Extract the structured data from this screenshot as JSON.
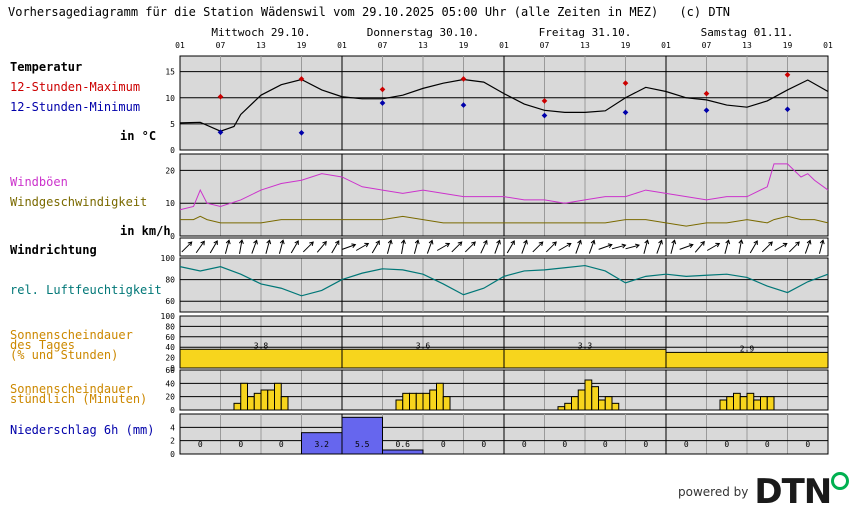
{
  "header": {
    "title": "Vorhersagediagramm für die Station Wädenswil vom 29.10.2025 05:00 Uhr (alle Zeiten in MEZ)",
    "copyright": "(c) DTN"
  },
  "days": [
    {
      "label": "Mittwoch 29.10."
    },
    {
      "label": "Donnerstag 30.10."
    },
    {
      "label": "Freitag 31.10."
    },
    {
      "label": "Samstag 01.11."
    }
  ],
  "hour_ticks": [
    "01",
    "07",
    "13",
    "19"
  ],
  "end_tick": "01",
  "panels": {
    "temperature": {
      "title": "Temperatur",
      "max_label": "12-Stunden-Maximum",
      "min_label": "12-Stunden-Minimum",
      "unit": "in °C",
      "ticks": [
        "0",
        "5",
        "10",
        "15"
      ],
      "colors": {
        "title": "#000000",
        "max": "#cc0000",
        "min": "#0000aa",
        "line": "#000000"
      }
    },
    "wind": {
      "gust_label": "Windböen",
      "speed_label": "Windgeschwindigkeit",
      "unit": "in km/h",
      "ticks": [
        "0",
        "10",
        "20"
      ],
      "colors": {
        "gust": "#cc33cc",
        "speed": "#7a6a00"
      }
    },
    "wind_direction": {
      "title": "Windrichtung"
    },
    "humidity": {
      "title": "rel. Luftfeuchtigkeit",
      "ticks": [
        "60",
        "80",
        "100"
      ],
      "color": "#007777"
    },
    "sun_daily": {
      "title": "Sonnenscheindauer\ndes Tages\n(% und Stunden)",
      "ticks": [
        "0",
        "20",
        "40",
        "60",
        "80",
        "100"
      ],
      "color": "#f7d51d",
      "title_color": "#cc8800"
    },
    "sun_hourly": {
      "title": "Sonnenscheindauer\nstündlich (Minuten)",
      "ticks": [
        "0",
        "20",
        "40",
        "60"
      ],
      "color": "#f7d51d",
      "title_color": "#cc8800"
    },
    "precip": {
      "title": "Niederschlag 6h (mm)",
      "ticks": [
        "0",
        "2",
        "4"
      ],
      "color": "#6666ee",
      "title_color": "#0000aa"
    }
  },
  "chart_data": [
    {
      "type": "line",
      "name": "temperature",
      "ylim": [
        0,
        18
      ],
      "x_hours": [
        0,
        3,
        6,
        8,
        9,
        12,
        15,
        18,
        21,
        24,
        27,
        30,
        33,
        36,
        39,
        42,
        45,
        48,
        51,
        54,
        57,
        60,
        63,
        66,
        69,
        72,
        75,
        78,
        81,
        84,
        87,
        90,
        93,
        96
      ],
      "values": [
        5.2,
        5.3,
        3.6,
        4.5,
        6.8,
        10.5,
        12.5,
        13.5,
        11.5,
        10.2,
        9.8,
        9.8,
        10.5,
        11.8,
        12.8,
        13.5,
        13.0,
        10.8,
        8.8,
        7.6,
        7.2,
        7.2,
        7.5,
        10.0,
        12.0,
        11.2,
        10.0,
        9.6,
        8.6,
        8.2,
        9.4,
        11.5,
        13.4,
        11.2
      ],
      "max_points": [
        [
          6,
          10.2
        ],
        [
          18,
          13.6
        ],
        [
          30,
          11.6
        ],
        [
          42,
          13.6
        ],
        [
          54,
          9.4
        ],
        [
          66,
          12.8
        ],
        [
          78,
          10.8
        ],
        [
          90,
          14.4
        ]
      ],
      "min_points": [
        [
          6,
          3.4
        ],
        [
          18,
          3.3
        ],
        [
          30,
          9.0
        ],
        [
          42,
          8.6
        ],
        [
          54,
          6.6
        ],
        [
          66,
          7.2
        ],
        [
          78,
          7.6
        ],
        [
          90,
          7.8
        ]
      ]
    },
    {
      "type": "line",
      "name": "wind",
      "ylim": [
        0,
        25
      ],
      "x_hours": [
        0,
        2,
        3,
        4,
        6,
        9,
        12,
        15,
        18,
        21,
        24,
        27,
        30,
        33,
        36,
        39,
        42,
        45,
        48,
        51,
        54,
        57,
        60,
        63,
        66,
        69,
        72,
        75,
        78,
        81,
        84,
        87,
        88,
        90,
        92,
        93,
        94,
        96
      ],
      "gusts": [
        8,
        9,
        14,
        10,
        9,
        11,
        14,
        16,
        17,
        19,
        18,
        15,
        14,
        13,
        14,
        13,
        12,
        12,
        12,
        11,
        11,
        10,
        11,
        12,
        12,
        14,
        13,
        12,
        11,
        12,
        12,
        15,
        22,
        22,
        18,
        19,
        17,
        14
      ],
      "speeds": [
        5,
        5,
        6,
        5,
        4,
        4,
        4,
        5,
        5,
        5,
        5,
        5,
        5,
        6,
        5,
        4,
        4,
        4,
        4,
        4,
        4,
        4,
        4,
        4,
        5,
        5,
        4,
        3,
        4,
        4,
        5,
        4,
        5,
        6,
        5,
        5,
        5,
        4
      ]
    },
    {
      "type": "line",
      "name": "wind_direction",
      "directions_deg": [
        45,
        35,
        30,
        15,
        10,
        20,
        15,
        15,
        30,
        45,
        40,
        30,
        70,
        60,
        30,
        15,
        10,
        15,
        20,
        60,
        45,
        45,
        25,
        20,
        30,
        20,
        45,
        45,
        60,
        20,
        20,
        70,
        75,
        75,
        15,
        20,
        15,
        70,
        40,
        60,
        15,
        10,
        30,
        45,
        60,
        45,
        20,
        15
      ]
    },
    {
      "type": "line",
      "name": "humidity",
      "ylim": [
        50,
        100
      ],
      "x_hours": [
        0,
        3,
        6,
        9,
        12,
        15,
        18,
        21,
        24,
        27,
        30,
        33,
        36,
        39,
        42,
        45,
        48,
        51,
        54,
        57,
        60,
        63,
        66,
        69,
        72,
        75,
        78,
        81,
        84,
        87,
        90,
        93,
        96
      ],
      "values": [
        92,
        88,
        92,
        85,
        76,
        72,
        65,
        70,
        80,
        86,
        90,
        89,
        85,
        76,
        66,
        72,
        83,
        88,
        89,
        91,
        93,
        88,
        77,
        83,
        85,
        83,
        84,
        85,
        82,
        74,
        68,
        78,
        85
      ]
    },
    {
      "type": "bar",
      "name": "sun_daily",
      "categories": [
        "Mittwoch 29.10.",
        "Donnerstag 30.10.",
        "Freitag 31.10.",
        "Samstag 01.11."
      ],
      "values_percent": [
        36,
        36,
        36,
        30
      ],
      "values_hours": [
        "3.8",
        "3.6",
        "3.3",
        "2.9"
      ],
      "ylim": [
        0,
        100
      ]
    },
    {
      "type": "bar",
      "name": "sun_hourly",
      "ylim": [
        0,
        60
      ],
      "series": [
        {
          "day": "Mittwoch 29.10.",
          "start_hour": 8,
          "minutes": [
            10,
            40,
            20,
            25,
            30,
            30,
            40,
            20
          ]
        },
        {
          "day": "Donnerstag 30.10.",
          "start_hour": 32,
          "minutes": [
            15,
            25,
            25,
            25,
            25,
            30,
            40,
            20
          ]
        },
        {
          "day": "Freitag 31.10.",
          "start_hour": 56,
          "minutes": [
            5,
            10,
            20,
            30,
            45,
            35,
            15,
            20,
            10
          ]
        },
        {
          "day": "Samstag 01.11.",
          "start_hour": 80,
          "minutes": [
            15,
            20,
            25,
            20,
            25,
            15,
            20,
            20
          ]
        }
      ]
    },
    {
      "type": "bar",
      "name": "precip",
      "ylim": [
        0,
        6
      ],
      "values": [
        0,
        0,
        0,
        3.2,
        5.5,
        0.6,
        0,
        0,
        0,
        0,
        0,
        0,
        0,
        0,
        0,
        0
      ],
      "labels": [
        "0",
        "0",
        "0",
        "3.2",
        "5.5",
        "0.6",
        "0",
        "0",
        "0",
        "0",
        "0",
        "0",
        "0",
        "0",
        "0",
        "0"
      ]
    }
  ],
  "footer": {
    "powered_by": "powered by",
    "brand": "DTN"
  }
}
